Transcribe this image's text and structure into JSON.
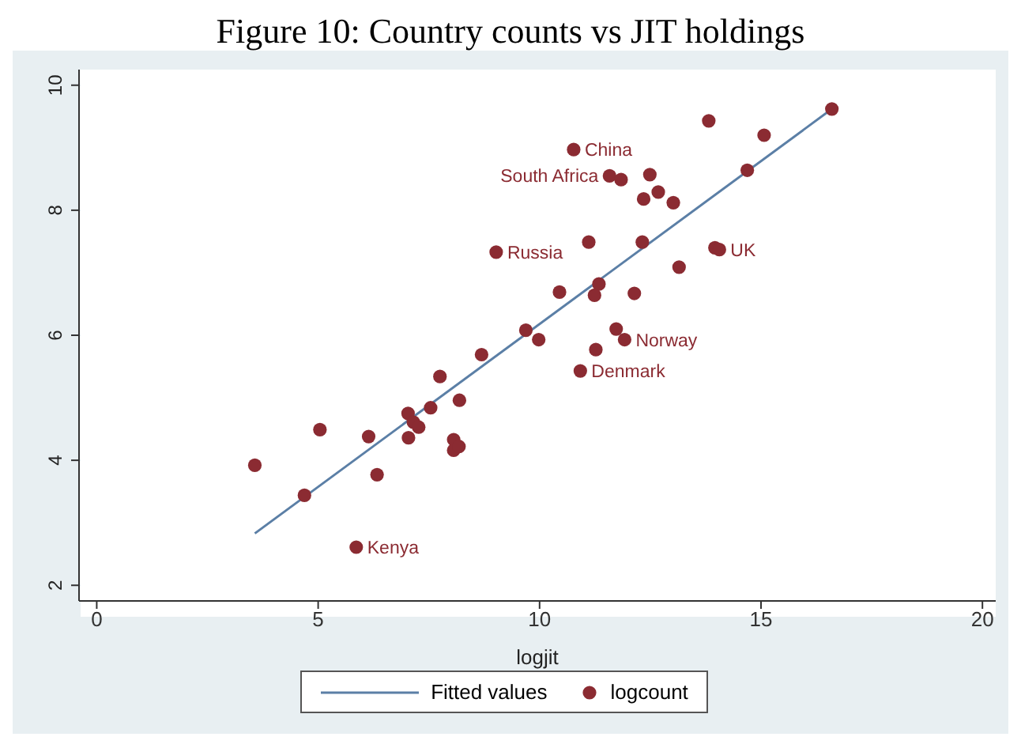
{
  "chart_data": {
    "type": "scatter",
    "title": "Figure 10: Country counts vs JIT holdings",
    "xlabel": "logjit",
    "xlim": [
      -0.4,
      20.3
    ],
    "xticks": [
      0,
      5,
      10,
      15,
      20
    ],
    "ylim": [
      1.75,
      10.25
    ],
    "yticks": [
      2,
      4,
      6,
      8,
      10
    ],
    "grid": "y",
    "legend": "bottom",
    "marker": "circle",
    "series": [
      {
        "name": "Fitted values",
        "type": "line",
        "color": "#5b7fa6",
        "line_style": "solid",
        "marker": "none",
        "x": [
          3.57,
          16.6
        ],
        "values": [
          2.83,
          9.62
        ]
      },
      {
        "name": "logcount",
        "color": "#8b2b32",
        "x": [
          3.57,
          4.69,
          5.04,
          5.86,
          6.14,
          6.33,
          7.03,
          7.04,
          7.15,
          7.27,
          7.54,
          7.75,
          8.06,
          8.06,
          8.18,
          8.19,
          8.69,
          9.02,
          9.69,
          16.6,
          13.82,
          15.07,
          10.77,
          11.58,
          11.84,
          12.49,
          14.69,
          12.68,
          12.35,
          13.02,
          11.11,
          12.32,
          13.96,
          14.06,
          13.15,
          11.34,
          11.24,
          10.45,
          12.14,
          9.98,
          11.73,
          11.92,
          11.27,
          10.92
        ],
        "values": [
          3.92,
          3.44,
          4.49,
          2.61,
          4.38,
          3.77,
          4.75,
          4.36,
          4.61,
          4.53,
          4.84,
          5.34,
          4.33,
          4.16,
          4.22,
          4.96,
          5.69,
          7.33,
          6.08,
          9.62,
          9.43,
          9.2,
          8.97,
          8.55,
          8.49,
          8.57,
          8.64,
          8.29,
          8.18,
          8.12,
          7.49,
          7.49,
          7.4,
          7.37,
          7.09,
          6.82,
          6.64,
          6.69,
          6.67,
          5.93,
          6.1,
          5.93,
          5.77,
          5.43
        ]
      }
    ],
    "annotations": [
      {
        "text": "China",
        "x": 10.77,
        "y": 8.97
      },
      {
        "text": "South Africa",
        "x": 11.58,
        "y": 8.55
      },
      {
        "text": "Russia",
        "x": 9.02,
        "y": 7.33
      },
      {
        "text": "UK",
        "x": 14.06,
        "y": 7.37
      },
      {
        "text": "Norway",
        "x": 11.92,
        "y": 5.93
      },
      {
        "text": "Denmark",
        "x": 10.92,
        "y": 5.43
      },
      {
        "text": "Kenya",
        "x": 5.86,
        "y": 2.61
      }
    ]
  }
}
